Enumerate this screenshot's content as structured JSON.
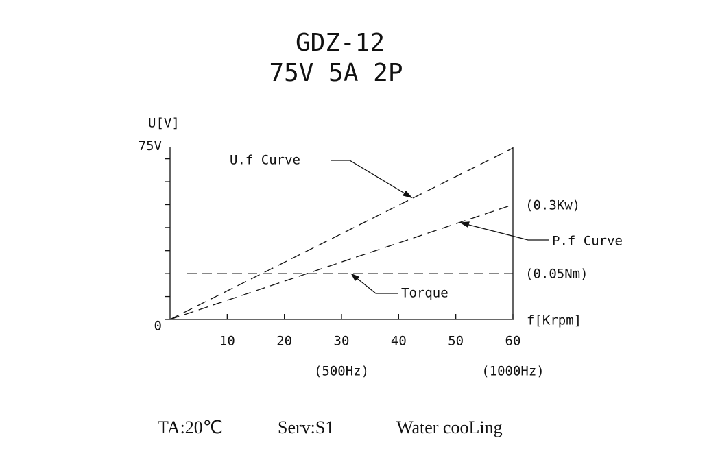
{
  "chart_data": {
    "type": "line",
    "title": "GDZ-12",
    "subtitle": "75V 5A 2P",
    "y_label": "U[V]",
    "x_label": "f[Krpm]",
    "xlim": [
      0,
      60
    ],
    "ylim": [
      0,
      80
    ],
    "xticks": [
      10,
      20,
      30,
      40,
      50,
      60
    ],
    "yticks": [
      0,
      {
        "value": 75,
        "label": "75V"
      }
    ],
    "yminorticks": [
      10.7,
      21.4,
      32.1,
      42.9,
      53.6,
      64.3
    ],
    "x_secondary_labels": [
      {
        "value": 30,
        "label": "(500Hz)"
      },
      {
        "value": 60,
        "label": "(1000Hz)"
      }
    ],
    "series": [
      {
        "name": "U.f Curve",
        "x": [
          0,
          60
        ],
        "values": [
          0,
          80
        ]
      },
      {
        "name": "P.f Curve",
        "x": [
          0,
          60
        ],
        "values": [
          0,
          53.6
        ],
        "end_label": "(0.3Kw)"
      },
      {
        "name": "Torque",
        "x": [
          3,
          60
        ],
        "values": [
          21.4,
          21.4
        ],
        "end_label": "(0.05Nm)"
      }
    ],
    "footer": [
      "TA:20℃",
      "Serv:S1",
      "Water cooLing"
    ]
  }
}
